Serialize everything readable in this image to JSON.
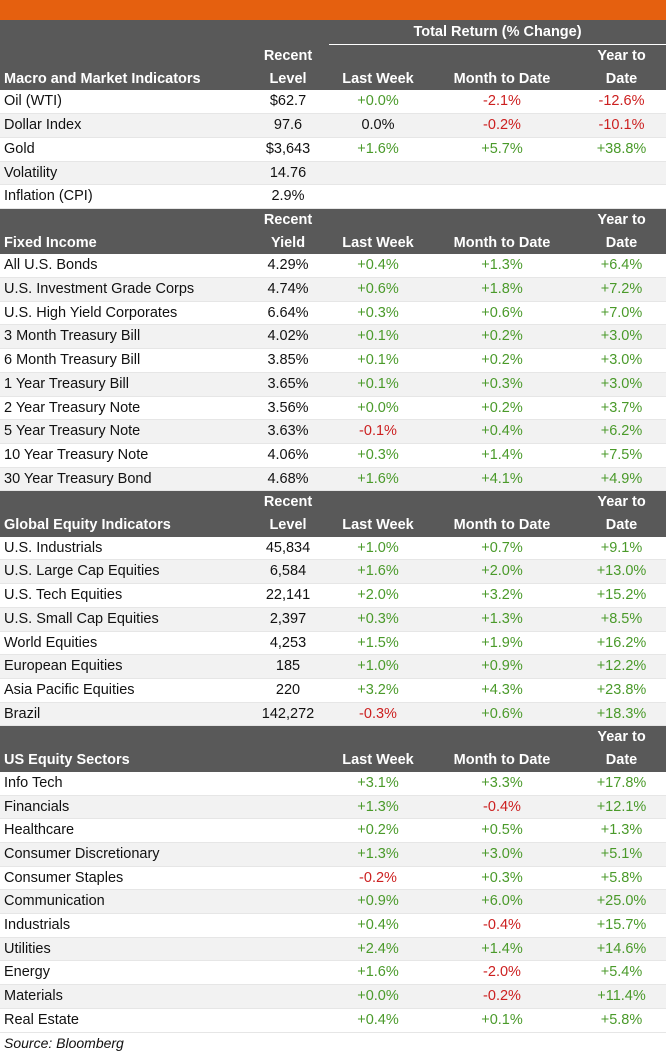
{
  "header": {
    "total_return_label": "Total Return (% Change)"
  },
  "sections": [
    {
      "title": "Macro and Market Indicators",
      "level_label_1": "Recent",
      "level_label_2": "Level",
      "col_week": "Last Week",
      "col_mtd": "Month to Date",
      "col_ytd_1": "Year to",
      "col_ytd_2": "Date",
      "rows": [
        {
          "name": "Oil (WTI)",
          "level": "$62.7",
          "week": "+0.0%",
          "mtd": "-2.1%",
          "ytd": "-12.6%"
        },
        {
          "name": "Dollar Index",
          "level": "97.6",
          "week": "0.0%",
          "mtd": "-0.2%",
          "ytd": "-10.1%"
        },
        {
          "name": "Gold",
          "level": "$3,643",
          "week": "+1.6%",
          "mtd": "+5.7%",
          "ytd": "+38.8%"
        },
        {
          "name": "Volatility",
          "level": "14.76",
          "week": "",
          "mtd": "",
          "ytd": ""
        },
        {
          "name": "Inflation (CPI)",
          "level": "2.9%",
          "week": "",
          "mtd": "",
          "ytd": ""
        }
      ]
    },
    {
      "title": "Fixed Income",
      "level_label_1": "Recent",
      "level_label_2": "Yield",
      "col_week": "Last Week",
      "col_mtd": "Month to Date",
      "col_ytd_1": "Year to",
      "col_ytd_2": "Date",
      "rows": [
        {
          "name": "All U.S. Bonds",
          "level": "4.29%",
          "week": "+0.4%",
          "mtd": "+1.3%",
          "ytd": "+6.4%"
        },
        {
          "name": "U.S. Investment Grade Corps",
          "level": "4.74%",
          "week": "+0.6%",
          "mtd": "+1.8%",
          "ytd": "+7.2%"
        },
        {
          "name": "U.S. High Yield Corporates",
          "level": "6.64%",
          "week": "+0.3%",
          "mtd": "+0.6%",
          "ytd": "+7.0%"
        },
        {
          "name": "3 Month Treasury Bill",
          "level": "4.02%",
          "week": "+0.1%",
          "mtd": "+0.2%",
          "ytd": "+3.0%"
        },
        {
          "name": "6 Month Treasury Bill",
          "level": "3.85%",
          "week": "+0.1%",
          "mtd": "+0.2%",
          "ytd": "+3.0%"
        },
        {
          "name": "1 Year Treasury Bill",
          "level": "3.65%",
          "week": "+0.1%",
          "mtd": "+0.3%",
          "ytd": "+3.0%"
        },
        {
          "name": "2 Year Treasury Note",
          "level": "3.56%",
          "week": "+0.0%",
          "mtd": "+0.2%",
          "ytd": "+3.7%"
        },
        {
          "name": "5 Year Treasury Note",
          "level": "3.63%",
          "week": "-0.1%",
          "mtd": "+0.4%",
          "ytd": "+6.2%"
        },
        {
          "name": "10 Year Treasury Note",
          "level": "4.06%",
          "week": "+0.3%",
          "mtd": "+1.4%",
          "ytd": "+7.5%"
        },
        {
          "name": "30 Year Treasury Bond",
          "level": "4.68%",
          "week": "+1.6%",
          "mtd": "+4.1%",
          "ytd": "+4.9%"
        }
      ]
    },
    {
      "title": "Global Equity Indicators",
      "level_label_1": "Recent",
      "level_label_2": "Level",
      "col_week": "Last Week",
      "col_mtd": "Month to Date",
      "col_ytd_1": "Year to",
      "col_ytd_2": "Date",
      "rows": [
        {
          "name": "U.S. Industrials",
          "level": "45,834",
          "week": "+1.0%",
          "mtd": "+0.7%",
          "ytd": "+9.1%"
        },
        {
          "name": "U.S. Large Cap Equities",
          "level": "6,584",
          "week": "+1.6%",
          "mtd": "+2.0%",
          "ytd": "+13.0%"
        },
        {
          "name": "U.S. Tech Equities",
          "level": "22,141",
          "week": "+2.0%",
          "mtd": "+3.2%",
          "ytd": "+15.2%"
        },
        {
          "name": "U.S. Small Cap Equities",
          "level": "2,397",
          "week": "+0.3%",
          "mtd": "+1.3%",
          "ytd": "+8.5%"
        },
        {
          "name": "World Equities",
          "level": "4,253",
          "week": "+1.5%",
          "mtd": "+1.9%",
          "ytd": "+16.2%"
        },
        {
          "name": "European Equities",
          "level": "185",
          "week": "+1.0%",
          "mtd": "+0.9%",
          "ytd": "+12.2%"
        },
        {
          "name": "Asia Pacific Equities",
          "level": "220",
          "week": "+3.2%",
          "mtd": "+4.3%",
          "ytd": "+23.8%"
        },
        {
          "name": "Brazil",
          "level": "142,272",
          "week": "-0.3%",
          "mtd": "+0.6%",
          "ytd": "+18.3%"
        }
      ]
    },
    {
      "title": "US Equity Sectors",
      "level_label_1": "",
      "level_label_2": "",
      "col_week": "Last Week",
      "col_mtd": "Month to Date",
      "col_ytd_1": "Year to",
      "col_ytd_2": "Date",
      "rows": [
        {
          "name": "Info Tech",
          "level": "",
          "week": "+3.1%",
          "mtd": "+3.3%",
          "ytd": "+17.8%"
        },
        {
          "name": "Financials",
          "level": "",
          "week": "+1.3%",
          "mtd": "-0.4%",
          "ytd": "+12.1%"
        },
        {
          "name": "Healthcare",
          "level": "",
          "week": "+0.2%",
          "mtd": "+0.5%",
          "ytd": "+1.3%"
        },
        {
          "name": "Consumer Discretionary",
          "level": "",
          "week": "+1.3%",
          "mtd": "+3.0%",
          "ytd": "+5.1%"
        },
        {
          "name": "Consumer Staples",
          "level": "",
          "week": "-0.2%",
          "mtd": "+0.3%",
          "ytd": "+5.8%"
        },
        {
          "name": "Communication",
          "level": "",
          "week": "+0.9%",
          "mtd": "+6.0%",
          "ytd": "+25.0%"
        },
        {
          "name": "Industrials",
          "level": "",
          "week": "+0.4%",
          "mtd": "-0.4%",
          "ytd": "+15.7%"
        },
        {
          "name": "Utilities",
          "level": "",
          "week": "+2.4%",
          "mtd": "+1.4%",
          "ytd": "+14.6%"
        },
        {
          "name": "Energy",
          "level": "",
          "week": "+1.6%",
          "mtd": "-2.0%",
          "ytd": "+5.4%"
        },
        {
          "name": "Materials",
          "level": "",
          "week": "+0.0%",
          "mtd": "-0.2%",
          "ytd": "+11.4%"
        },
        {
          "name": "Real Estate",
          "level": "",
          "week": "+0.4%",
          "mtd": "+0.1%",
          "ytd": "+5.8%"
        }
      ]
    }
  ],
  "source": "Source: Bloomberg",
  "colors": {
    "accent": "#e5600f",
    "header_bg": "#595959",
    "positive": "#4a9a2a",
    "negative": "#cc1f1f"
  }
}
